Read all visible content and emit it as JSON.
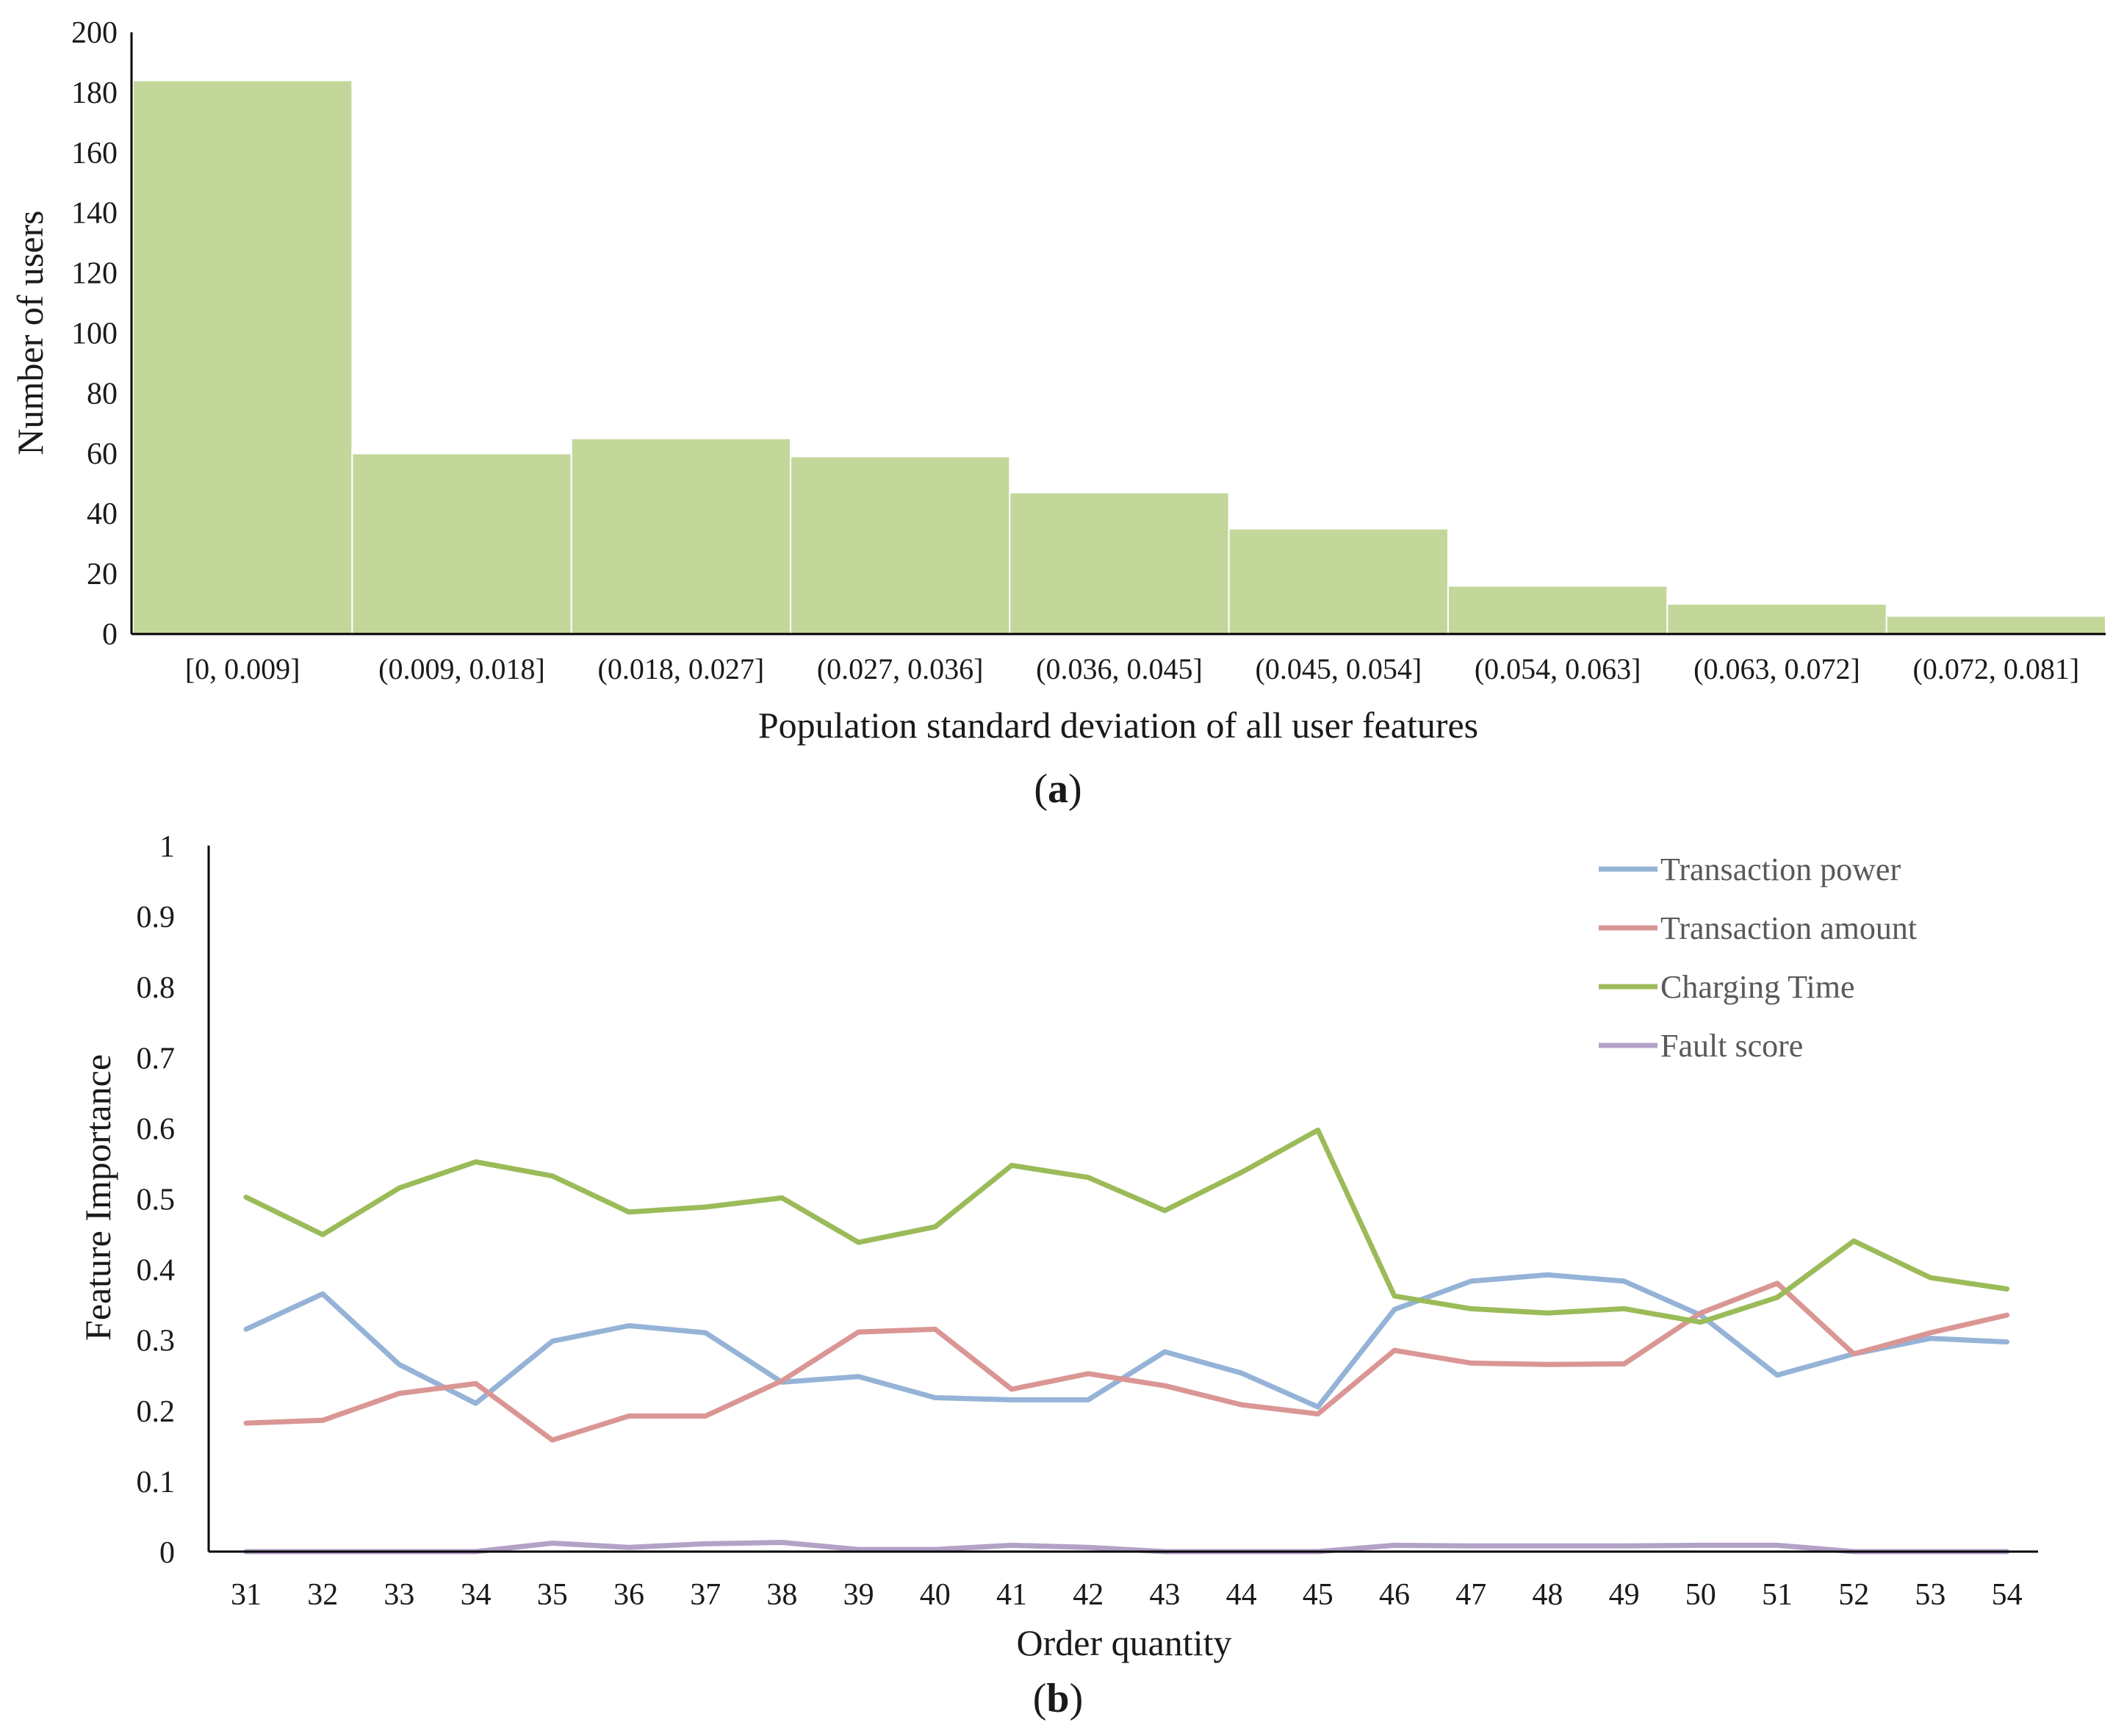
{
  "chart_data": [
    {
      "type": "bar",
      "panel_label": "(a)",
      "panel_letter": "a",
      "xlabel": "Population standard deviation of all user features",
      "ylabel": "Number of users",
      "categories": [
        "[0, 0.009]",
        "(0.009, 0.018]",
        "(0.018, 0.027]",
        "(0.027, 0.036]",
        "(0.036, 0.045]",
        "(0.045, 0.054]",
        "(0.054, 0.063]",
        "(0.063, 0.072]",
        "(0.072, 0.081]"
      ],
      "values": [
        184,
        60,
        65,
        59,
        47,
        35,
        16,
        10,
        6
      ],
      "ylim": [
        0,
        200
      ],
      "yticks": [
        0,
        20,
        40,
        60,
        80,
        100,
        120,
        140,
        160,
        180,
        200
      ],
      "bar_color": "#c4d79b",
      "grid": false
    },
    {
      "type": "line",
      "panel_label": "(b)",
      "panel_letter": "b",
      "xlabel": "Order quantity",
      "ylabel": "Feature Importance",
      "x": [
        31,
        32,
        33,
        34,
        35,
        36,
        37,
        38,
        39,
        40,
        41,
        42,
        43,
        44,
        45,
        46,
        47,
        48,
        49,
        50,
        51,
        52,
        53,
        54
      ],
      "ylim": [
        0,
        1
      ],
      "yticks": [
        "0",
        "0.1",
        "0.2",
        "0.3",
        "0.4",
        "0.5",
        "0.6",
        "0.7",
        "0.8",
        "0.9",
        "1"
      ],
      "legend_position": "top-right",
      "grid": false,
      "series": [
        {
          "name": "Transaction power",
          "color": "#95b3d7",
          "values": [
            0.315,
            0.365,
            0.265,
            0.21,
            0.298,
            0.32,
            0.31,
            0.24,
            0.248,
            0.218,
            0.215,
            0.215,
            0.283,
            0.253,
            0.205,
            0.343,
            0.383,
            0.392,
            0.383,
            0.335,
            0.25,
            0.28,
            0.302,
            0.297
          ]
        },
        {
          "name": "Transaction amount",
          "color": "#da9694",
          "values": [
            0.182,
            0.186,
            0.224,
            0.238,
            0.158,
            0.192,
            0.192,
            0.242,
            0.311,
            0.315,
            0.23,
            0.252,
            0.235,
            0.208,
            0.195,
            0.285,
            0.267,
            0.265,
            0.266,
            0.338,
            0.38,
            0.28,
            0.31,
            0.335
          ]
        },
        {
          "name": "Charging Time",
          "color": "#9bbb59",
          "values": [
            0.502,
            0.449,
            0.515,
            0.552,
            0.532,
            0.481,
            0.488,
            0.501,
            0.438,
            0.46,
            0.547,
            0.53,
            0.483,
            0.537,
            0.597,
            0.362,
            0.344,
            0.338,
            0.344,
            0.325,
            0.36,
            0.44,
            0.388,
            0.372
          ]
        },
        {
          "name": "Fault score",
          "color": "#b3a2c7",
          "values": [
            0.0,
            0.0,
            0.0,
            0.0,
            0.012,
            0.006,
            0.011,
            0.013,
            0.003,
            0.003,
            0.009,
            0.006,
            0.0,
            0.0,
            0.0,
            0.009,
            0.008,
            0.008,
            0.008,
            0.009,
            0.009,
            0.0,
            0.0,
            0.0
          ]
        }
      ]
    }
  ]
}
